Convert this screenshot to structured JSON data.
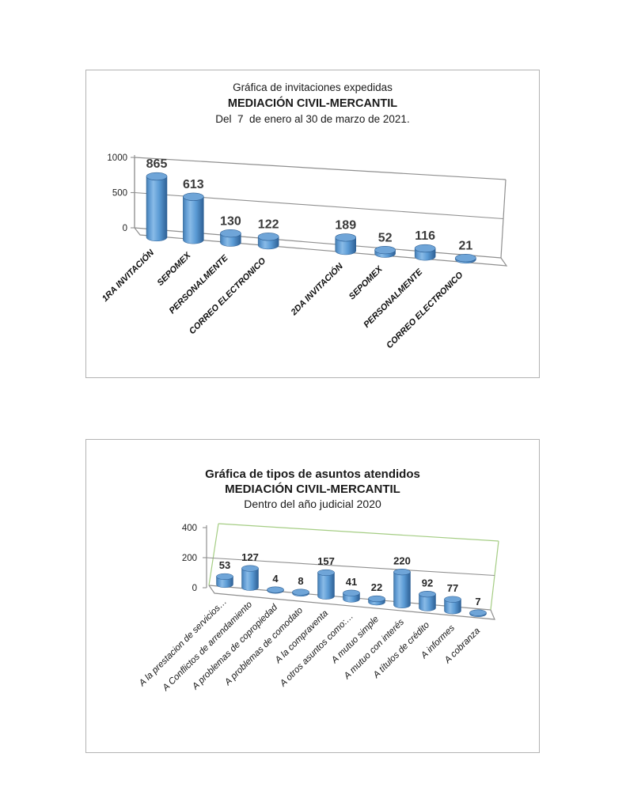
{
  "chart_data": [
    {
      "type": "bar",
      "variant": "3d-cylinder",
      "title": "Gráfica de invitaciones expedidas",
      "subtitle": "MEDIACIÓN CIVIL-MERCANTIL",
      "period": "Del  7  de enero al 30 de marzo de 2021.",
      "categories": [
        "1RA INVITACIÓN",
        "SEPOMEX",
        "PERSONALMENTE",
        "CORREO ELECTRONICO",
        "",
        "2DA INVITACIÓN",
        "SEPOMEX",
        "PERSONALMENTE",
        "CORREO ELECTRONICO"
      ],
      "values": [
        865,
        613,
        130,
        122,
        null,
        189,
        52,
        116,
        21
      ],
      "yticks": [
        0,
        500,
        1000
      ],
      "ylim": [
        0,
        1000
      ],
      "xlabel": "",
      "ylabel": "",
      "legend": "none",
      "grid": true,
      "bar_color": "#5b9bd5",
      "box_color": "#8f8f8f"
    },
    {
      "type": "bar",
      "variant": "3d-cylinder",
      "title": "Gráfica de tipos de asuntos atendidos",
      "subtitle": "MEDIACIÓN CIVIL-MERCANTIL",
      "period": "Dentro del año judicial 2020",
      "categories": [
        "A la prestacion de servicios…",
        "A Conflictos de arrendamiento",
        "A problemas de copropiedad",
        "A problemas de comodato",
        "A la compraventa",
        "A otros asuntos como:…",
        "A mutuo simple",
        "A mutuo con interés",
        "A títulos de crédito",
        "A informes",
        "A cobranza"
      ],
      "values": [
        53,
        127,
        4,
        8,
        157,
        41,
        22,
        220,
        92,
        77,
        7
      ],
      "yticks": [
        0,
        200,
        400
      ],
      "ylim": [
        0,
        400
      ],
      "xlabel": "",
      "ylabel": "",
      "legend": "none",
      "grid": true,
      "bar_color": "#5b9bd5",
      "box_color": "#a5cd84"
    }
  ]
}
